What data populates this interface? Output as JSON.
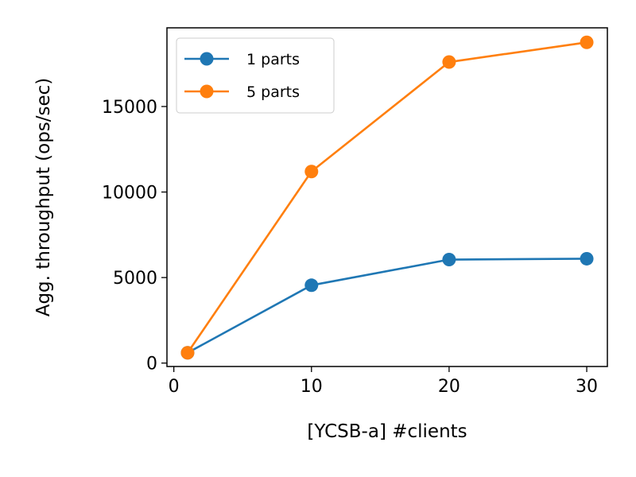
{
  "chart_data": {
    "type": "line",
    "title": "",
    "xlabel": "[YCSB-a]  #clients",
    "ylabel": "Agg. throughput (ops/sec)",
    "xlim": [
      -0.5,
      31.5
    ],
    "ylim": [
      -200,
      19600
    ],
    "xticks": [
      0,
      10,
      20,
      30
    ],
    "yticks": [
      0,
      5000,
      10000,
      15000
    ],
    "grid": false,
    "legend": "top-left",
    "series": [
      {
        "name": "1 parts",
        "color": "#1f77b4",
        "x": [
          1,
          10,
          20,
          30
        ],
        "y": [
          600,
          4550,
          6050,
          6100
        ]
      },
      {
        "name": "5 parts",
        "color": "#ff7f0e",
        "x": [
          1,
          10,
          20,
          30
        ],
        "y": [
          600,
          11200,
          17600,
          18750
        ]
      }
    ]
  }
}
